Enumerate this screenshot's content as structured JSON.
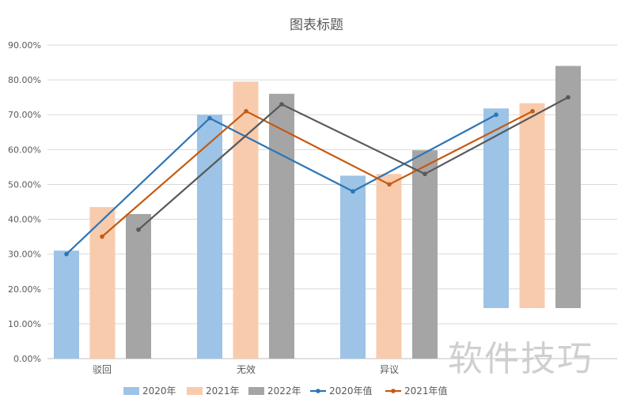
{
  "chart_data": {
    "type": "bar",
    "title": "图表标题",
    "categories": [
      "驳回",
      "无效",
      "异议",
      ""
    ],
    "y_ticks": [
      "0.00%",
      "10.00%",
      "20.00%",
      "30.00%",
      "40.00%",
      "50.00%",
      "60.00%",
      "70.00%",
      "80.00%",
      "90.00%"
    ],
    "ylim": [
      0,
      90
    ],
    "gridlines": true,
    "legend_position": "bottom",
    "bar_series": [
      {
        "name": "2020年",
        "color": "#9dc3e6",
        "values": [
          31,
          70,
          52.5,
          71.8
        ],
        "base": [
          0,
          0,
          0,
          14.5
        ]
      },
      {
        "name": "2021年",
        "color": "#f8cbad",
        "values": [
          43.5,
          79.5,
          53,
          73.3
        ],
        "base": [
          0,
          0,
          0,
          14.5
        ]
      },
      {
        "name": "2022年",
        "color": "#a5a5a5",
        "values": [
          41.5,
          76,
          59.8,
          84
        ],
        "base": [
          0,
          0,
          0,
          14.5
        ]
      }
    ],
    "line_series": [
      {
        "name": "2020年值",
        "color": "#2e75b6",
        "values": [
          30,
          69,
          48,
          70
        ]
      },
      {
        "name": "2021年值",
        "color": "#c55a11",
        "values": [
          35,
          71,
          50,
          71
        ]
      },
      {
        "name": "",
        "color": "#595959",
        "values": [
          37,
          73,
          53,
          75
        ]
      }
    ]
  },
  "watermark": "软件技巧"
}
